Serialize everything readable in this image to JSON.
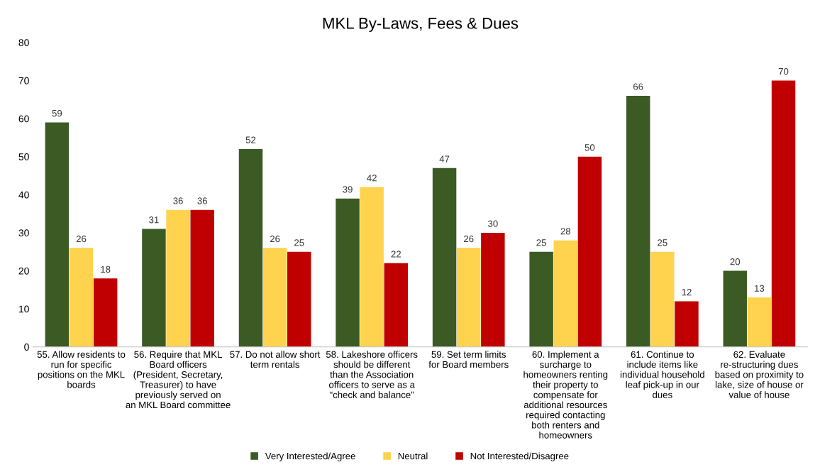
{
  "chart_data": {
    "type": "bar",
    "title": "MKL By-Laws, Fees & Dues",
    "categories": [
      "55. Allow residents to run for specific positions on the MKL boards",
      "56. Require that MKL Board officers (President, Secretary, Treasurer) to have previously served on an MKL Board committee",
      "57. Do not allow short term rentals",
      "58. Lakeshore officers should be different than the Association officers to serve as a “check and balance”",
      "59. Set term limits for Board members",
      "60. Implement a surcharge to homeowners renting their property to compensate for additional resources required contacting both renters and homeowners",
      "61. Continue to include items like individual household leaf pick-up in our dues",
      "62. Evaluate re-structuring dues based on proximity to lake, size of house or value of house"
    ],
    "series": [
      {
        "name": "Very Interested/Agree",
        "color": "#3b5a24",
        "values": [
          59,
          31,
          52,
          39,
          47,
          25,
          66,
          20
        ]
      },
      {
        "name": "Neutral",
        "color": "#ffd34d",
        "values": [
          26,
          36,
          26,
          42,
          26,
          28,
          25,
          13
        ]
      },
      {
        "name": "Not Interested/Disagree",
        "color": "#c00000",
        "values": [
          18,
          36,
          25,
          22,
          30,
          50,
          12,
          70
        ]
      }
    ],
    "ylim": [
      0,
      80
    ],
    "yticks": [
      0,
      10,
      20,
      30,
      40,
      50,
      60,
      70,
      80
    ],
    "grid": false,
    "legend": "bottom",
    "data_labels": true
  }
}
